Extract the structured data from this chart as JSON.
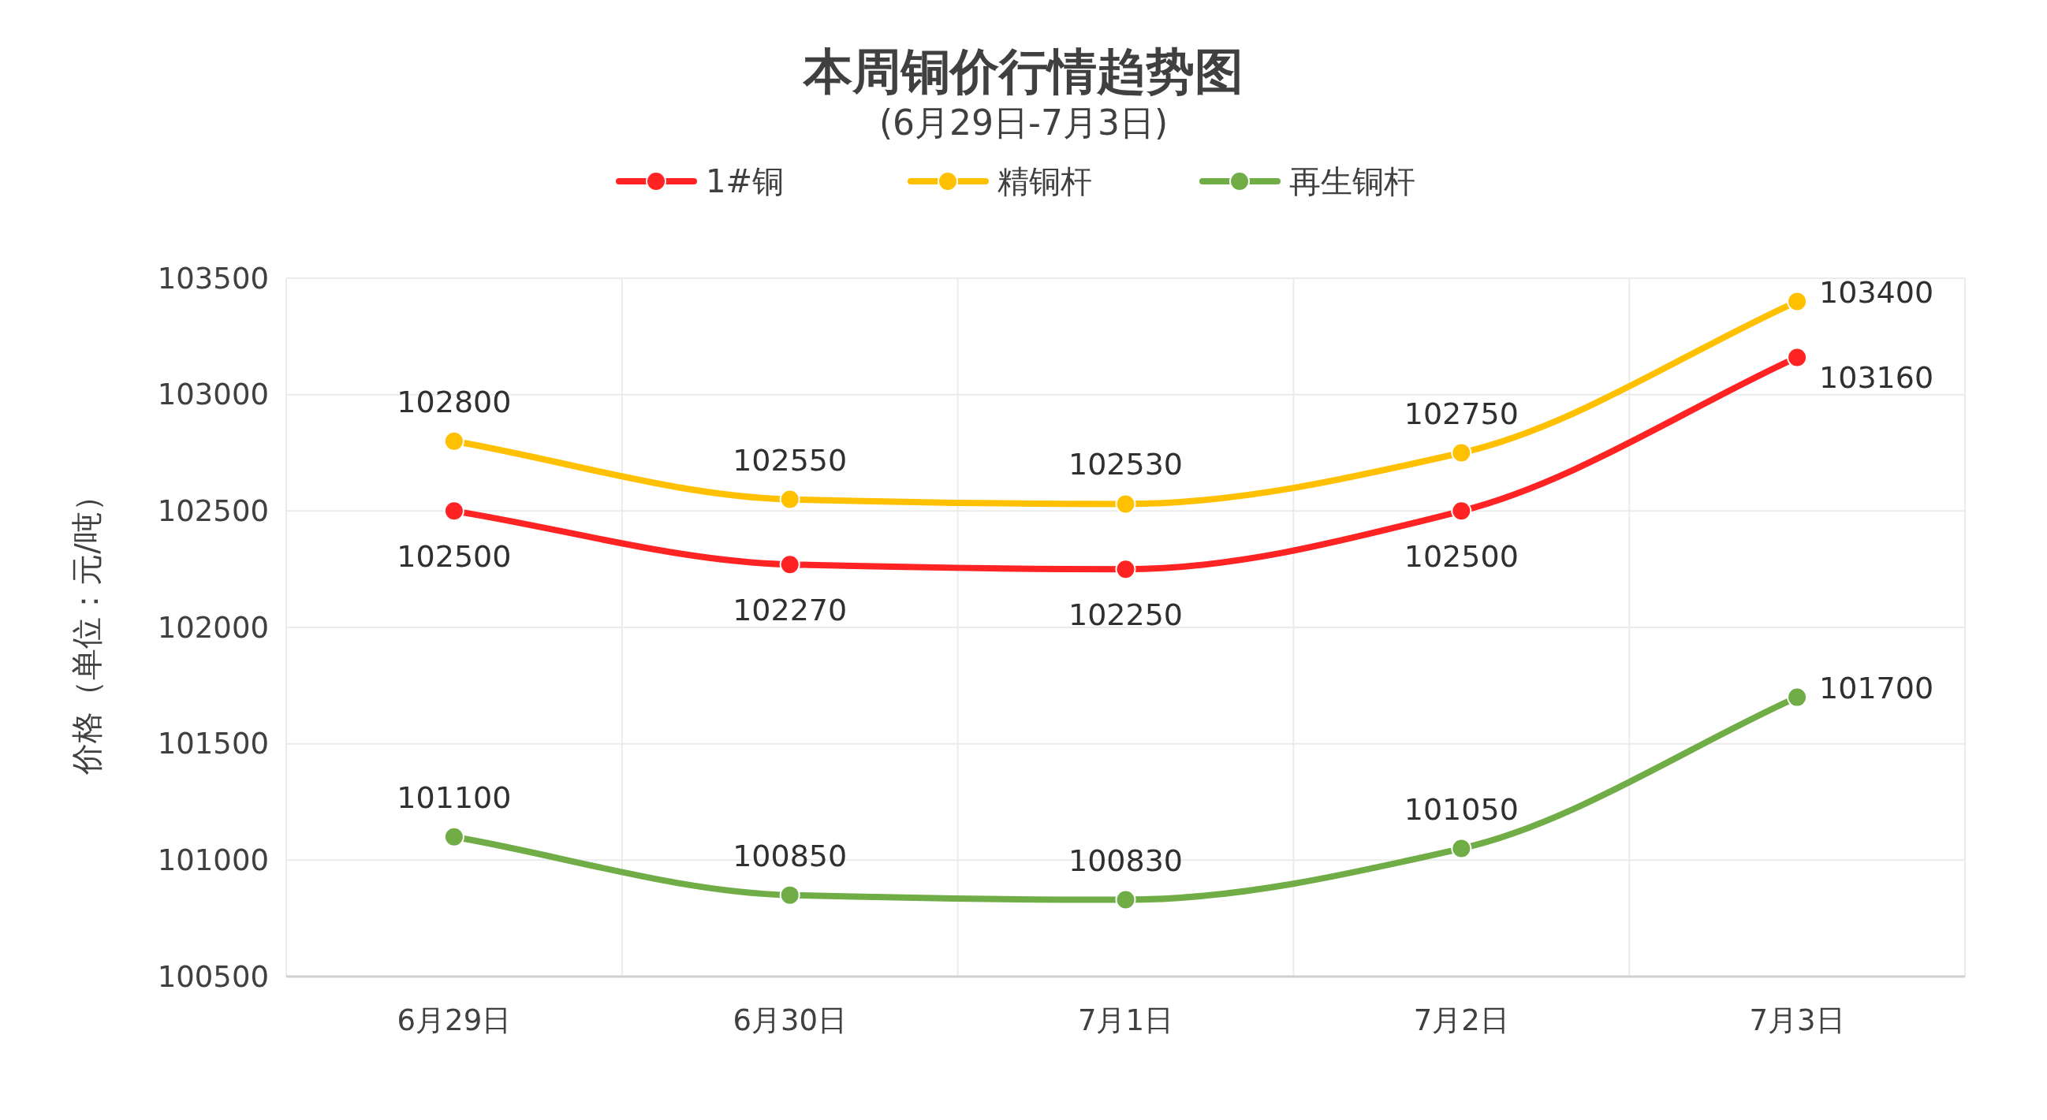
{
  "chart_data": {
    "type": "line",
    "title": "本周铜价行情趋势图",
    "subtitle": "(6月29日-7月3日)",
    "ylabel": "价格（单位：元/吨）",
    "categories": [
      "6月29日",
      "6月30日",
      "7月1日",
      "7月2日",
      "7月3日"
    ],
    "series": [
      {
        "name": "1#铜",
        "color": "#ff2323",
        "values": [
          102500,
          102270,
          102250,
          102500,
          103160
        ]
      },
      {
        "name": "精铜杆",
        "color": "#ffc000",
        "values": [
          102800,
          102550,
          102530,
          102750,
          103400
        ]
      },
      {
        "name": "再生铜杆",
        "color": "#70ad47",
        "values": [
          101100,
          100850,
          100830,
          101050,
          101700
        ]
      }
    ],
    "ylim": [
      100500,
      103500
    ],
    "yticks": [
      100500,
      101000,
      101500,
      102000,
      102500,
      103000,
      103500
    ],
    "grid": true,
    "legend": "top",
    "marker": "circle",
    "line_style": "solid",
    "data_labels": true
  }
}
